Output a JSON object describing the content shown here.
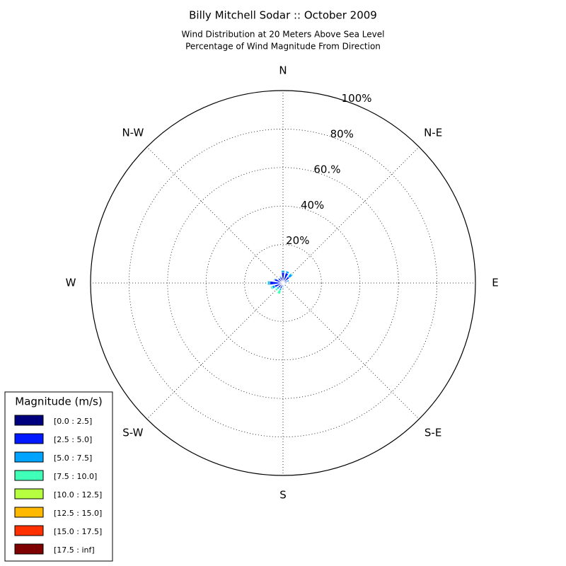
{
  "chart_data": {
    "type": "windrose",
    "title": "Billy Mitchell Sodar :: October 2009",
    "subtitle": [
      "Wind Distribution at 20 Meters Above Sea Level",
      "Percentage of Wind Magnitude From Direction"
    ],
    "direction_labels": [
      "N",
      "N-E",
      "E",
      "S-E",
      "S",
      "S-W",
      "W",
      "N-W"
    ],
    "x": [
      0,
      22.5,
      45,
      67.5,
      90,
      112.5,
      135,
      157.5,
      180,
      202.5,
      225,
      247.5,
      270,
      292.5,
      315,
      337.5
    ],
    "ylim": [
      0,
      100
    ],
    "yticks": [
      {
        "value": 20,
        "label": "20%"
      },
      {
        "value": 40,
        "label": "40%"
      },
      {
        "value": 60,
        "label": "60.%"
      },
      {
        "value": 80,
        "label": "80%"
      },
      {
        "value": 100,
        "label": "100%"
      }
    ],
    "grid": true,
    "legend_title": "Magnitude (m/s)",
    "legend_position": "lower left",
    "series": [
      {
        "name": "[0.0 : 2.5]",
        "color": "#00007f",
        "values": [
          1.5,
          1.5,
          1.2,
          0.8,
          0.8,
          0.6,
          0.5,
          0.6,
          0.8,
          1.0,
          1.2,
          1.5,
          1.8,
          1.5,
          1.2,
          1.2
        ]
      },
      {
        "name": "[2.5 : 5.0]",
        "color": "#0019ff",
        "values": [
          4,
          4,
          3,
          1.5,
          1,
          0.5,
          0.5,
          0.5,
          1,
          2,
          2,
          3,
          5,
          3,
          2,
          2
        ]
      },
      {
        "name": "[5.0 : 7.5]",
        "color": "#00a4ff",
        "values": [
          1,
          1,
          2,
          1,
          0.3,
          0.2,
          0.2,
          0.3,
          0.5,
          1,
          1,
          1.5,
          1,
          0.5,
          0.3,
          0.5
        ]
      },
      {
        "name": "[7.5 : 10.0]",
        "color": "#40ffb6",
        "values": [
          0,
          0,
          0.5,
          0.2,
          0,
          0,
          0,
          0.2,
          0.5,
          2,
          1,
          0.8,
          0.5,
          0,
          0,
          0
        ]
      },
      {
        "name": "[10.0 : 12.5]",
        "color": "#b6ff40",
        "values": [
          0,
          0,
          0,
          0,
          0,
          0,
          0,
          0,
          0,
          0,
          0,
          0,
          0,
          0,
          0,
          0
        ]
      },
      {
        "name": "[12.5 : 15.0]",
        "color": "#ffb900",
        "values": [
          0,
          0,
          0,
          0,
          0,
          0,
          0,
          0,
          0,
          0,
          0,
          0,
          0,
          0,
          0,
          0
        ]
      },
      {
        "name": "[15.0 : 17.5]",
        "color": "#ff3000",
        "values": [
          0,
          0,
          0,
          0,
          0,
          0,
          0,
          0,
          0,
          0,
          0,
          0,
          0,
          0,
          0,
          0
        ]
      },
      {
        "name": "[17.5 : inf]",
        "color": "#7f0000",
        "values": [
          0,
          0,
          0,
          0,
          0,
          0,
          0,
          0,
          0,
          0,
          0,
          0,
          0,
          0,
          0,
          0
        ]
      }
    ]
  }
}
